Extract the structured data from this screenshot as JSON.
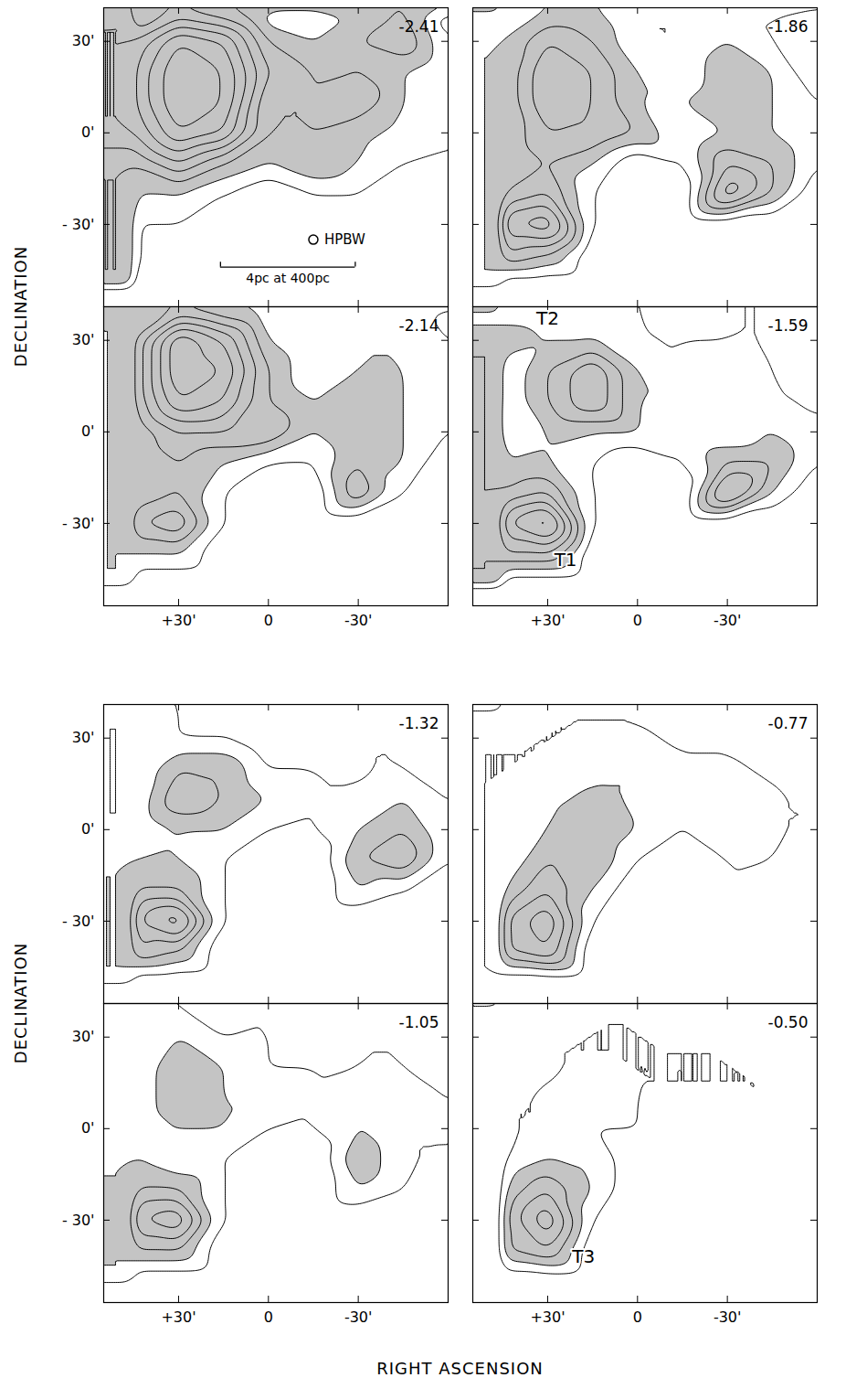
{
  "axis_titles": {
    "x": "RIGHT ASCENSION",
    "y": "DECLINATION"
  },
  "chart_data": [
    {
      "type": "contour",
      "title": "-2.41",
      "tick_labels": "y",
      "xlim": [
        55,
        -60
      ],
      "ylim": [
        -57,
        41
      ],
      "xticks": [
        {
          "value": 30,
          "label": "+30'"
        },
        {
          "value": 0,
          "label": "0"
        },
        {
          "value": -30,
          "label": "-30'"
        }
      ],
      "yticks": [
        {
          "value": 30,
          "label": "30'"
        },
        {
          "value": 0,
          "label": "0'"
        },
        {
          "value": -30,
          "label": "- 30'"
        }
      ],
      "ra": [
        45,
        30,
        15,
        0,
        -15,
        -30,
        -45,
        -60
      ],
      "dec": [
        40,
        30,
        20,
        10,
        0,
        -10,
        -20,
        -30,
        -40,
        -50
      ],
      "cells": [
        [
          2,
          4,
          3,
          1,
          1,
          2,
          3,
          0
        ],
        [
          5,
          8,
          7,
          3,
          2,
          3,
          4,
          1
        ],
        [
          6,
          9,
          8,
          4,
          3,
          3,
          2,
          1
        ],
        [
          6,
          9,
          8,
          3,
          3,
          4,
          2,
          1
        ],
        [
          5,
          8,
          7,
          3,
          3,
          2,
          2,
          1
        ],
        [
          3,
          5,
          3,
          2,
          3,
          2,
          1,
          1
        ],
        [
          2,
          2,
          1,
          0,
          1,
          1,
          0,
          0
        ],
        [
          1,
          1,
          0,
          0,
          0,
          0,
          0,
          0
        ],
        [
          1,
          0,
          0,
          0,
          0,
          0,
          0,
          0
        ],
        [
          0,
          0,
          0,
          0,
          0,
          0,
          0,
          0
        ]
      ],
      "levels": [
        1,
        2,
        3,
        4,
        5,
        6,
        7,
        8
      ],
      "shaded_above": 2,
      "beam": {
        "label": "HPBW",
        "x": -15,
        "y": -35
      },
      "scale_bar": {
        "label": "4pc at 400pc",
        "x1": 16,
        "x2": -29,
        "y": -44
      }
    },
    {
      "type": "contour",
      "title": "-1.86",
      "tick_labels": false,
      "xlim": [
        55,
        -60
      ],
      "ylim": [
        -57,
        41
      ],
      "xticks": [
        {
          "value": 30,
          "label": "+30'"
        },
        {
          "value": 0,
          "label": "0"
        },
        {
          "value": -30,
          "label": "-30'"
        }
      ],
      "yticks": [
        {
          "value": 30,
          "label": "30'"
        },
        {
          "value": 0,
          "label": "0'"
        },
        {
          "value": -30,
          "label": "- 30'"
        }
      ],
      "ra": [
        45,
        30,
        15,
        0,
        -15,
        -30,
        -45,
        -60
      ],
      "dec": [
        40,
        30,
        20,
        10,
        0,
        -10,
        -20,
        -30,
        -40,
        -50
      ],
      "cells": [
        [
          1,
          2,
          2,
          1,
          1,
          1,
          1,
          0
        ],
        [
          2,
          4,
          3,
          1,
          1,
          2,
          1,
          0
        ],
        [
          2,
          5,
          4,
          2,
          1,
          3,
          2,
          0
        ],
        [
          2,
          5,
          4,
          2,
          2,
          3,
          2,
          1
        ],
        [
          2,
          4,
          4,
          3,
          1,
          2,
          2,
          1
        ],
        [
          2,
          3,
          2,
          0,
          1,
          4,
          3,
          1
        ],
        [
          3,
          4,
          1,
          0,
          0,
          6,
          3,
          0
        ],
        [
          6,
          7,
          1,
          0,
          0,
          0,
          0,
          0
        ],
        [
          4,
          3,
          0,
          0,
          0,
          0,
          0,
          0
        ],
        [
          0,
          0,
          0,
          0,
          0,
          0,
          0,
          0
        ]
      ],
      "levels": [
        1,
        2,
        3,
        4,
        5,
        6,
        7,
        8
      ],
      "shaded_above": 2
    },
    {
      "type": "contour",
      "title": "-2.14",
      "tick_labels": true,
      "xlim": [
        55,
        -60
      ],
      "ylim": [
        -57,
        41
      ],
      "xticks": [
        {
          "value": 30,
          "label": "+30'"
        },
        {
          "value": 0,
          "label": "0"
        },
        {
          "value": -30,
          "label": "-30'"
        }
      ],
      "yticks": [
        {
          "value": 30,
          "label": "30'"
        },
        {
          "value": 0,
          "label": "0'"
        },
        {
          "value": -30,
          "label": "- 30'"
        }
      ],
      "ra": [
        45,
        30,
        15,
        0,
        -15,
        -30,
        -45,
        -60
      ],
      "dec": [
        40,
        30,
        20,
        10,
        0,
        -10,
        -20,
        -30,
        -40,
        -50
      ],
      "cells": [
        [
          1,
          3,
          2,
          1,
          1,
          1,
          2,
          0
        ],
        [
          3,
          8,
          6,
          2,
          1,
          2,
          2,
          1
        ],
        [
          3,
          8,
          7,
          3,
          1,
          2,
          2,
          1
        ],
        [
          3,
          7,
          6,
          3,
          2,
          3,
          2,
          1
        ],
        [
          2,
          4,
          4,
          4,
          2,
          3,
          2,
          1
        ],
        [
          2,
          3,
          2,
          1,
          1,
          3,
          2,
          0
        ],
        [
          2,
          3,
          1,
          0,
          0,
          4,
          1,
          0
        ],
        [
          4,
          5,
          1,
          0,
          0,
          0,
          0,
          0
        ],
        [
          2,
          2,
          0,
          0,
          0,
          0,
          0,
          0
        ],
        [
          0,
          0,
          0,
          0,
          0,
          0,
          0,
          0
        ]
      ],
      "levels": [
        1,
        2,
        3,
        4,
        5,
        6,
        7,
        8
      ],
      "shaded_above": 2
    },
    {
      "type": "contour",
      "title": "-1.59",
      "tick_labels": "x",
      "xlim": [
        55,
        -60
      ],
      "ylim": [
        -57,
        41
      ],
      "xticks": [
        {
          "value": 30,
          "label": "+30'"
        },
        {
          "value": 0,
          "label": "0"
        },
        {
          "value": -30,
          "label": "-30'"
        }
      ],
      "yticks": [
        {
          "value": 30,
          "label": "30'"
        },
        {
          "value": 0,
          "label": "0'"
        },
        {
          "value": -30,
          "label": "- 30'"
        }
      ],
      "ra": [
        45,
        30,
        15,
        0,
        -15,
        -30,
        -45,
        -60
      ],
      "dec": [
        40,
        30,
        20,
        10,
        0,
        -10,
        -20,
        -30,
        -40,
        -50
      ],
      "cells": [
        [
          1,
          1,
          1,
          1,
          0,
          1,
          1,
          0
        ],
        [
          3,
          2,
          2,
          1,
          1,
          1,
          1,
          0
        ],
        [
          1,
          3,
          5,
          2,
          1,
          2,
          1,
          0
        ],
        [
          1,
          3,
          5,
          2,
          2,
          2,
          1,
          1
        ],
        [
          1,
          2,
          2,
          2,
          1,
          1,
          2,
          1
        ],
        [
          2,
          2,
          1,
          0,
          1,
          3,
          3,
          1
        ],
        [
          3,
          4,
          1,
          0,
          0,
          6,
          2,
          0
        ],
        [
          6,
          8,
          1,
          0,
          0,
          0,
          0,
          0
        ],
        [
          4,
          4,
          0,
          0,
          0,
          0,
          0,
          0
        ],
        [
          0,
          0,
          0,
          0,
          0,
          0,
          0,
          0
        ]
      ],
      "levels": [
        1,
        2,
        3,
        4,
        5,
        6,
        7,
        8
      ],
      "shaded_above": 2,
      "annotations": [
        {
          "text": "T2",
          "x": 30,
          "y": 37
        },
        {
          "text": "T1",
          "x": 24,
          "y": -42
        }
      ]
    },
    {
      "type": "contour",
      "title": "-1.32",
      "tick_labels": "y",
      "xlim": [
        55,
        -60
      ],
      "ylim": [
        -57,
        41
      ],
      "xticks": [
        {
          "value": 30,
          "label": "+30'"
        },
        {
          "value": 0,
          "label": "0"
        },
        {
          "value": -30,
          "label": "-30'"
        }
      ],
      "yticks": [
        {
          "value": 30,
          "label": "30'"
        },
        {
          "value": 0,
          "label": "0'"
        },
        {
          "value": -30,
          "label": "- 30'"
        }
      ],
      "ra": [
        45,
        30,
        15,
        0,
        -15,
        -30,
        -45,
        -60
      ],
      "dec": [
        40,
        30,
        20,
        10,
        0,
        -10,
        -20,
        -30,
        -40,
        -50
      ],
      "cells": [
        [
          1,
          1,
          0,
          0,
          0,
          0,
          1,
          0
        ],
        [
          2,
          1,
          1,
          0,
          0,
          1,
          1,
          0
        ],
        [
          1,
          3,
          3,
          1,
          1,
          1,
          1,
          0
        ],
        [
          1,
          4,
          3,
          2,
          1,
          1,
          2,
          1
        ],
        [
          1,
          2,
          2,
          1,
          1,
          2,
          3,
          1
        ],
        [
          2,
          2,
          1,
          0,
          0,
          3,
          4,
          1
        ],
        [
          3,
          3,
          1,
          0,
          0,
          2,
          1,
          0
        ],
        [
          5,
          7,
          1,
          0,
          0,
          0,
          0,
          0
        ],
        [
          4,
          3,
          0,
          0,
          0,
          0,
          0,
          0
        ],
        [
          0,
          0,
          0,
          0,
          0,
          0,
          0,
          0
        ]
      ],
      "levels": [
        1,
        2,
        3,
        4,
        5,
        6,
        7,
        8
      ],
      "shaded_above": 2
    },
    {
      "type": "contour",
      "title": "-0.77",
      "tick_labels": false,
      "xlim": [
        55,
        -60
      ],
      "ylim": [
        -57,
        41
      ],
      "xticks": [
        {
          "value": 30,
          "label": "+30'"
        },
        {
          "value": 0,
          "label": "0"
        },
        {
          "value": -30,
          "label": "-30'"
        }
      ],
      "yticks": [
        {
          "value": 30,
          "label": "30'"
        },
        {
          "value": 0,
          "label": "0'"
        },
        {
          "value": -30,
          "label": "- 30'"
        }
      ],
      "ra": [
        45,
        30,
        15,
        0,
        -15,
        -30,
        -45,
        -60
      ],
      "dec": [
        40,
        30,
        20,
        10,
        0,
        -10,
        -20,
        -30,
        -40,
        -50
      ],
      "cells": [
        [
          0,
          1,
          1,
          1,
          0,
          1,
          1,
          0
        ],
        [
          1,
          1,
          1,
          1,
          1,
          1,
          0,
          0
        ],
        [
          1,
          1,
          2,
          2,
          1,
          1,
          1,
          0
        ],
        [
          1,
          2,
          2,
          2,
          1,
          2,
          1,
          1
        ],
        [
          1,
          2,
          3,
          2,
          1,
          2,
          1,
          1
        ],
        [
          1,
          3,
          3,
          1,
          0,
          1,
          1,
          0
        ],
        [
          2,
          4,
          2,
          0,
          0,
          1,
          0,
          0
        ],
        [
          4,
          6,
          1,
          0,
          0,
          0,
          0,
          0
        ],
        [
          4,
          5,
          0,
          0,
          0,
          0,
          0,
          0
        ],
        [
          0,
          0,
          0,
          0,
          0,
          0,
          0,
          0
        ]
      ],
      "levels": [
        1,
        2,
        3,
        4,
        5,
        6,
        7,
        8
      ],
      "shaded_above": 2
    },
    {
      "type": "contour",
      "title": "-1.05",
      "tick_labels": true,
      "xlim": [
        55,
        -60
      ],
      "ylim": [
        -57,
        41
      ],
      "xticks": [
        {
          "value": 30,
          "label": "+30'"
        },
        {
          "value": 0,
          "label": "0"
        },
        {
          "value": -30,
          "label": "-30'"
        }
      ],
      "yticks": [
        {
          "value": 30,
          "label": "30'"
        },
        {
          "value": 0,
          "label": "0'"
        },
        {
          "value": -30,
          "label": "- 30'"
        }
      ],
      "ra": [
        45,
        30,
        15,
        0,
        -15,
        -30,
        -45,
        -60
      ],
      "dec": [
        40,
        30,
        20,
        10,
        0,
        -10,
        -20,
        -30,
        -40,
        -50
      ],
      "cells": [
        [
          1,
          1,
          0,
          1,
          0,
          0,
          1,
          0
        ],
        [
          1,
          2,
          1,
          1,
          0,
          1,
          1,
          0
        ],
        [
          1,
          3,
          2,
          1,
          1,
          1,
          1,
          0
        ],
        [
          1,
          3,
          2,
          2,
          1,
          2,
          2,
          1
        ],
        [
          1,
          2,
          2,
          1,
          1,
          2,
          1,
          1
        ],
        [
          2,
          1,
          1,
          0,
          0,
          3,
          1,
          1
        ],
        [
          3,
          3,
          1,
          0,
          0,
          2,
          1,
          0
        ],
        [
          5,
          6,
          1,
          0,
          0,
          0,
          0,
          0
        ],
        [
          3,
          3,
          0,
          0,
          0,
          0,
          0,
          0
        ],
        [
          0,
          0,
          0,
          0,
          0,
          0,
          0,
          0
        ]
      ],
      "levels": [
        1,
        2,
        3,
        4,
        5,
        6,
        7,
        8
      ],
      "shaded_above": 2
    },
    {
      "type": "contour",
      "title": "-0.50",
      "tick_labels": "x",
      "xlim": [
        55,
        -60
      ],
      "ylim": [
        -57,
        41
      ],
      "xticks": [
        {
          "value": 30,
          "label": "+30'"
        },
        {
          "value": 0,
          "label": "0"
        },
        {
          "value": -30,
          "label": "-30'"
        }
      ],
      "yticks": [
        {
          "value": 30,
          "label": "30'"
        },
        {
          "value": 0,
          "label": "0'"
        },
        {
          "value": -30,
          "label": "- 30'"
        }
      ],
      "ra": [
        45,
        30,
        15,
        0,
        -15,
        -30,
        -45,
        -60
      ],
      "dec": [
        40,
        30,
        20,
        10,
        0,
        -10,
        -20,
        -30,
        -40,
        -50
      ],
      "cells": [
        [
          0,
          0,
          1,
          1,
          0,
          1,
          1,
          0
        ],
        [
          0,
          1,
          1,
          1,
          1,
          1,
          0,
          0
        ],
        [
          0,
          1,
          1,
          1,
          1,
          1,
          1,
          0
        ],
        [
          1,
          1,
          2,
          1,
          1,
          1,
          1,
          0
        ],
        [
          1,
          1,
          1,
          1,
          0,
          0,
          1,
          0
        ],
        [
          1,
          2,
          2,
          0,
          0,
          0,
          0,
          0
        ],
        [
          2,
          4,
          2,
          0,
          0,
          0,
          0,
          0
        ],
        [
          3,
          6,
          1,
          0,
          0,
          0,
          0,
          0
        ],
        [
          3,
          4,
          0,
          0,
          0,
          0,
          0,
          0
        ],
        [
          0,
          0,
          0,
          0,
          0,
          0,
          0,
          0
        ]
      ],
      "levels": [
        1,
        2,
        3,
        4,
        5,
        6,
        7,
        8
      ],
      "shaded_above": 2,
      "annotations": [
        {
          "text": "T3",
          "x": 18,
          "y": -42
        }
      ]
    }
  ]
}
